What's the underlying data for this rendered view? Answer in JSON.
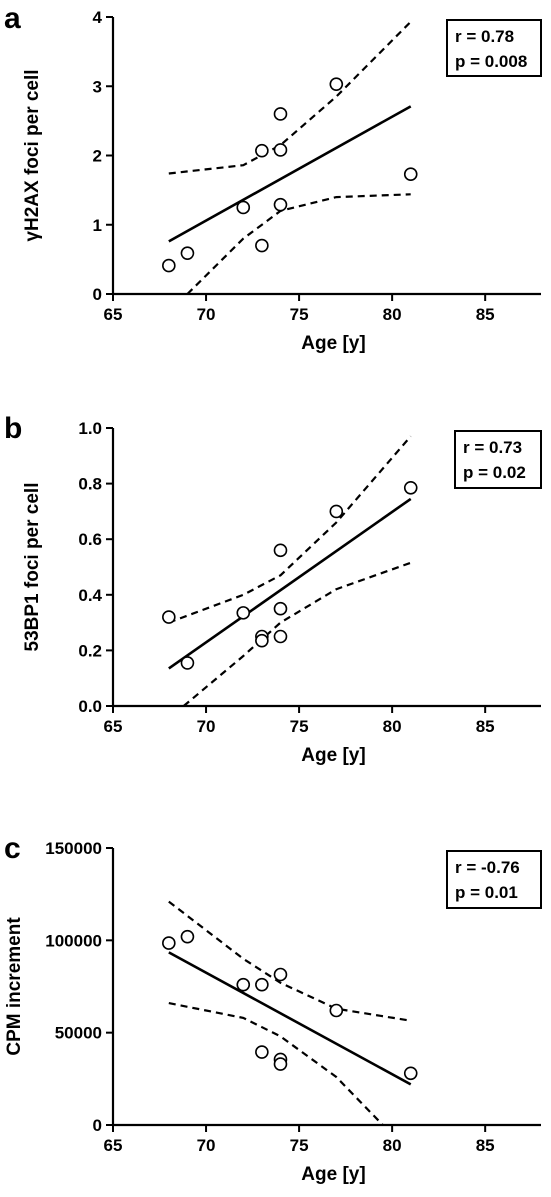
{
  "chart_data": [
    {
      "panel": "a",
      "type": "scatter",
      "title": "",
      "xlabel": "Age [y]",
      "ylabel": "γH2AX foci per cell",
      "xlim": [
        65,
        88
      ],
      "ylim": [
        0,
        4
      ],
      "xticks": [
        65,
        70,
        75,
        80,
        85
      ],
      "yticks": [
        "0",
        "1",
        "2",
        "3",
        "4"
      ],
      "points": [
        {
          "x": 68,
          "y": 0.41
        },
        {
          "x": 69,
          "y": 0.59
        },
        {
          "x": 72,
          "y": 1.25
        },
        {
          "x": 73,
          "y": 2.07
        },
        {
          "x": 73,
          "y": 0.7
        },
        {
          "x": 74,
          "y": 2.6
        },
        {
          "x": 74,
          "y": 2.08
        },
        {
          "x": 74,
          "y": 1.29
        },
        {
          "x": 77,
          "y": 3.03
        },
        {
          "x": 81,
          "y": 1.73
        }
      ],
      "regression": {
        "x": [
          68,
          81
        ],
        "y": [
          0.76,
          2.71
        ]
      },
      "ci_upper": {
        "x": [
          68,
          72,
          74,
          77,
          81
        ],
        "y": [
          1.74,
          1.86,
          2.15,
          2.85,
          3.93
        ]
      },
      "ci_lower": {
        "x": [
          69,
          72,
          74,
          77,
          81
        ],
        "y": [
          0.0,
          0.8,
          1.2,
          1.4,
          1.44
        ]
      },
      "stats": {
        "r": "r = 0.78",
        "p": "p = 0.008"
      }
    },
    {
      "panel": "b",
      "type": "scatter",
      "title": "",
      "xlabel": "Age [y]",
      "ylabel": "53BP1 foci per cell",
      "xlim": [
        65,
        88
      ],
      "ylim": [
        0,
        1
      ],
      "xticks": [
        65,
        70,
        75,
        80,
        85
      ],
      "yticks": [
        "0.0",
        "0.2",
        "0.4",
        "0.6",
        "0.8",
        "1.0"
      ],
      "points": [
        {
          "x": 68,
          "y": 0.32
        },
        {
          "x": 69,
          "y": 0.155
        },
        {
          "x": 72,
          "y": 0.335
        },
        {
          "x": 73,
          "y": 0.25
        },
        {
          "x": 73,
          "y": 0.235
        },
        {
          "x": 74,
          "y": 0.56
        },
        {
          "x": 74,
          "y": 0.35
        },
        {
          "x": 74,
          "y": 0.25
        },
        {
          "x": 77,
          "y": 0.7
        },
        {
          "x": 81,
          "y": 0.785
        }
      ],
      "regression": {
        "x": [
          68,
          81
        ],
        "y": [
          0.135,
          0.745
        ]
      },
      "ci_upper": {
        "x": [
          68,
          72,
          74,
          77,
          81
        ],
        "y": [
          0.3,
          0.4,
          0.47,
          0.66,
          0.97
        ]
      },
      "ci_lower": {
        "x": [
          68.8,
          72,
          74,
          77,
          81
        ],
        "y": [
          0.0,
          0.18,
          0.3,
          0.42,
          0.515
        ]
      },
      "stats": {
        "r": "r = 0.73",
        "p": "p = 0.02"
      }
    },
    {
      "panel": "c",
      "type": "scatter",
      "title": "",
      "xlabel": "Age [y]",
      "ylabel": "CPM increment",
      "xlim": [
        65,
        88
      ],
      "ylim": [
        0,
        150000
      ],
      "xticks": [
        65,
        70,
        75,
        80,
        85
      ],
      "yticks": [
        "0",
        "50000",
        "100000",
        "150000"
      ],
      "points": [
        {
          "x": 68,
          "y": 98500
        },
        {
          "x": 69,
          "y": 102000
        },
        {
          "x": 72,
          "y": 76000
        },
        {
          "x": 73,
          "y": 76000
        },
        {
          "x": 73,
          "y": 39500
        },
        {
          "x": 74,
          "y": 81500
        },
        {
          "x": 74,
          "y": 35500
        },
        {
          "x": 74,
          "y": 33000
        },
        {
          "x": 77,
          "y": 62000
        },
        {
          "x": 81,
          "y": 28000
        }
      ],
      "regression": {
        "x": [
          68,
          81
        ],
        "y": [
          93500,
          22000
        ]
      },
      "ci_upper": {
        "x": [
          68,
          72,
          74,
          77,
          81
        ],
        "y": [
          121000,
          90000,
          77000,
          63000,
          56500
        ]
      },
      "ci_lower": {
        "x": [
          68,
          72,
          74,
          77,
          79.5
        ],
        "y": [
          66000,
          58000,
          48000,
          26000,
          0
        ]
      },
      "stats": {
        "r": "r = -0.76",
        "p": "p = 0.01"
      }
    }
  ]
}
